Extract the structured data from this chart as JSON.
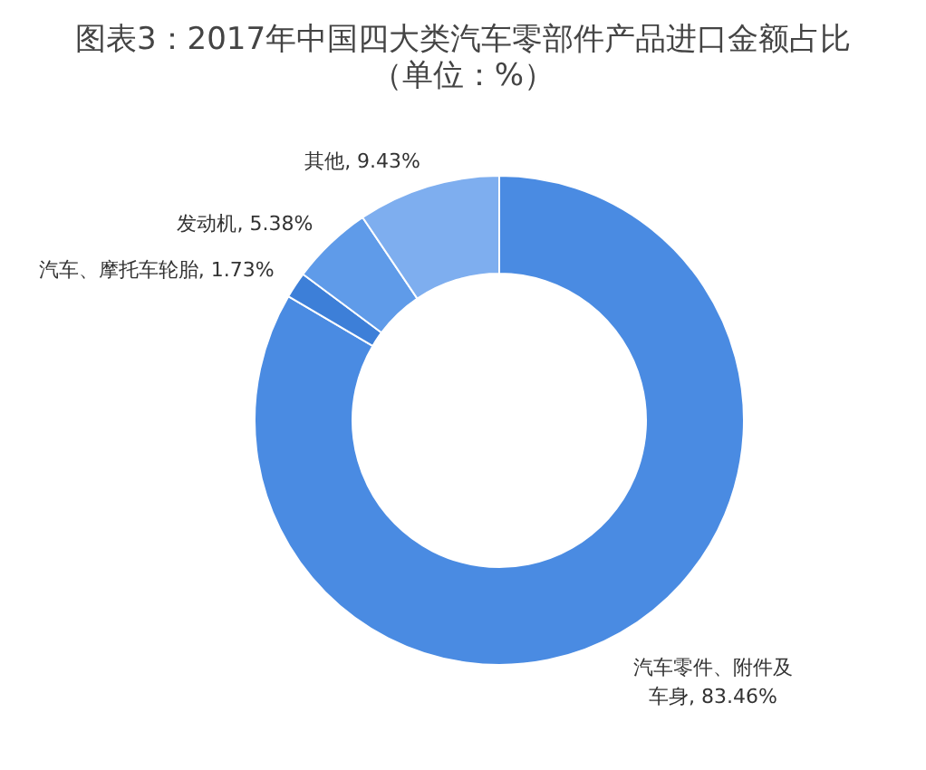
{
  "chart_data": {
    "type": "donut",
    "title": "图表3：2017年中国四大类汽车零部件产品进口金额占比（单位：%）",
    "categories": [
      "汽车零件、附件及车身",
      "汽车、摩托车轮胎",
      "发动机",
      "其他"
    ],
    "values": [
      83.46,
      1.73,
      5.38,
      9.43
    ],
    "value_labels": [
      "83.46%",
      "1.73%",
      "5.38%",
      "9.43%"
    ],
    "colors": [
      "#4a8be2",
      "#3d7fd8",
      "#5f9be9",
      "#7eaeef"
    ],
    "legend": false
  }
}
